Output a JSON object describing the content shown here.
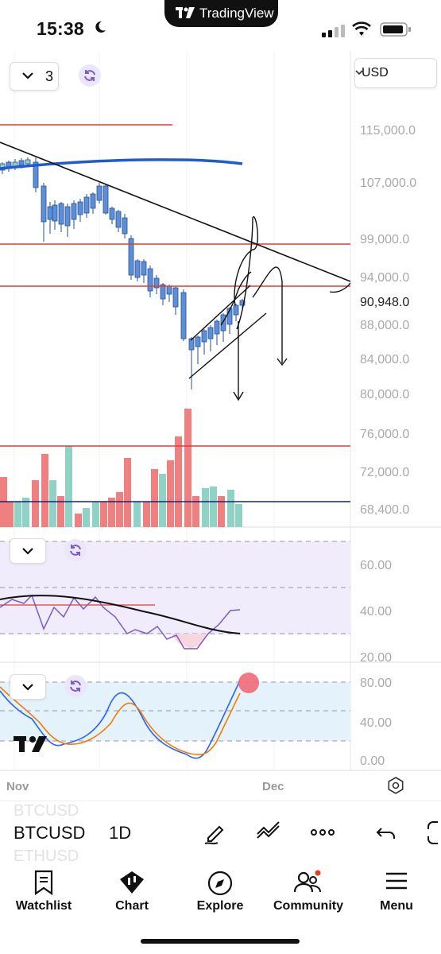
{
  "status_bar": {
    "time": "15:38",
    "app_pill": "TradingView"
  },
  "chart": {
    "indicator_count": "3",
    "currency": "USD",
    "price_axis": [
      "115,000.0",
      "107,000.0",
      "99,000.0",
      "94,000.0",
      "88,000.0",
      "84,000.0",
      "80,000.0",
      "76,000.0",
      "72,000.0",
      "68,400.0"
    ],
    "last_price": "90,948.0",
    "rsi_axis": [
      "60.00",
      "40.00",
      "20.00"
    ],
    "stoch_axis": [
      "80.00",
      "40.00",
      "0.00"
    ],
    "time_axis": [
      "Nov",
      "Dec"
    ],
    "colors": {
      "up": "#8fd3c7",
      "down": "#f08080",
      "candle_body": "#5b8fd9",
      "rsi": "#7c5cc4",
      "stoch_k": "#2962ff",
      "stoch_d": "#f57c00",
      "hline": "#e53935"
    }
  },
  "toolbar": {
    "symbol": "BTCUSD",
    "ghost_above": "BTCUSD",
    "ghost_below": "ETHUSD",
    "interval": "1D",
    "icons": [
      "draw-pen-icon",
      "indicators-icon",
      "more-icon",
      "undo-icon",
      "fullscreen-icon"
    ]
  },
  "nav": [
    {
      "label": "Watchlist",
      "icon": "watchlist-icon"
    },
    {
      "label": "Chart",
      "icon": "chart-icon"
    },
    {
      "label": "Explore",
      "icon": "compass-icon"
    },
    {
      "label": "Community",
      "icon": "community-icon"
    },
    {
      "label": "Menu",
      "icon": "menu-icon"
    }
  ]
}
